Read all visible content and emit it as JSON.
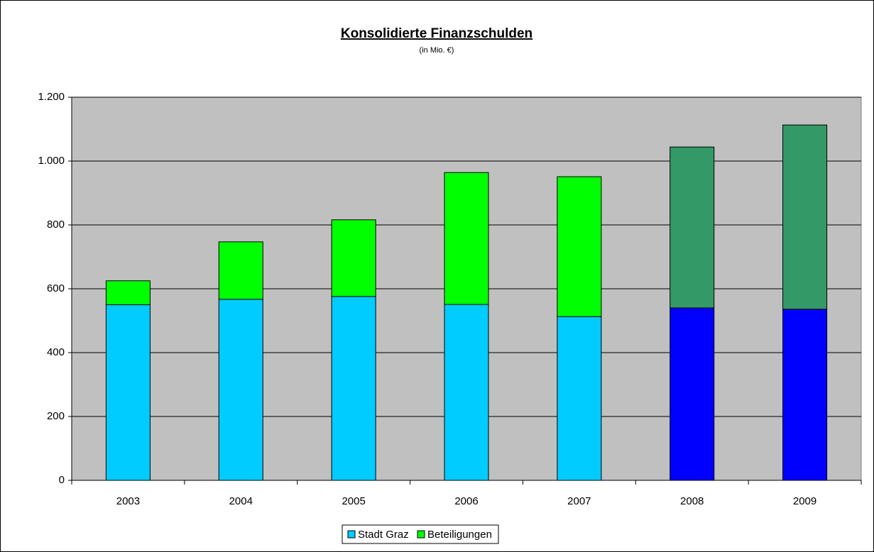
{
  "chart_data": {
    "type": "stacked_bar",
    "title": "Konsolidierte Finanzschulden",
    "subtitle": "(in Mio. €)",
    "categories": [
      "2003",
      "2004",
      "2005",
      "2006",
      "2007",
      "2008",
      "2009"
    ],
    "series": [
      {
        "name": "Stadt Graz",
        "color": "#00ccff",
        "colors": [
          "#00ccff",
          "#00ccff",
          "#00ccff",
          "#00ccff",
          "#00ccff",
          "#0000ff",
          "#0000ff"
        ],
        "values": [
          550,
          567,
          576,
          551,
          513,
          540,
          536
        ]
      },
      {
        "name": "Beteiligungen",
        "color": "#00ff00",
        "colors": [
          "#00ff00",
          "#00ff00",
          "#00ff00",
          "#00ff00",
          "#00ff00",
          "#339966",
          "#339966"
        ],
        "values": [
          75,
          180,
          240,
          413,
          438,
          504,
          577
        ]
      }
    ],
    "ylim": [
      0,
      1200
    ],
    "yticks": [
      0,
      200,
      400,
      600,
      800,
      {
        "value": 1000,
        "label": "1.000"
      },
      {
        "value": 1200,
        "label": "1.200"
      }
    ],
    "grid": true,
    "legend": "bottom",
    "plot_background": "#c0c0c0"
  }
}
